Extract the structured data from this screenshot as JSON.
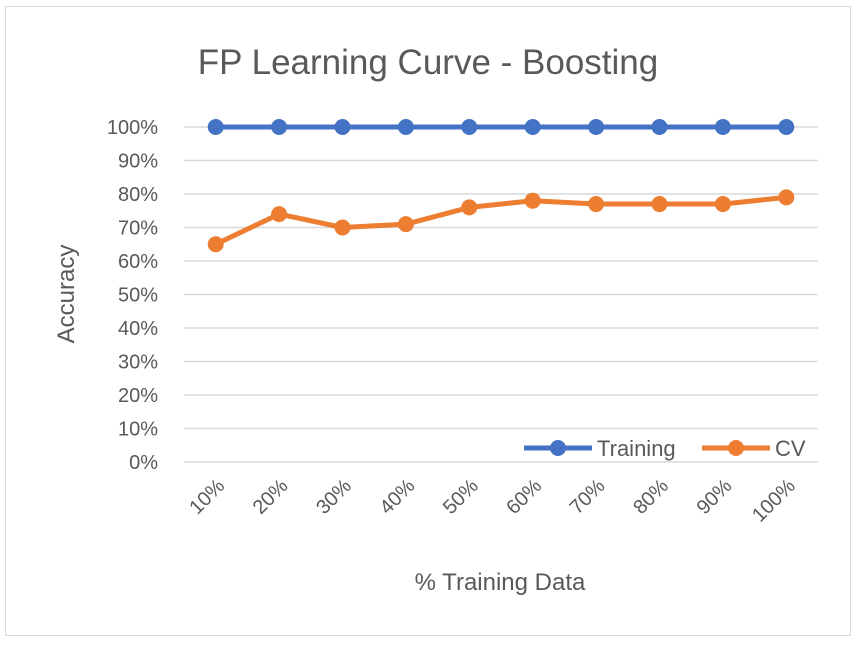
{
  "chart_data": {
    "type": "line",
    "title": "FP Learning Curve - Boosting",
    "xlabel": "% Training Data",
    "ylabel": "Accuracy",
    "categories": [
      "10%",
      "20%",
      "30%",
      "40%",
      "50%",
      "60%",
      "70%",
      "80%",
      "90%",
      "100%"
    ],
    "y_ticks": [
      "0%",
      "10%",
      "20%",
      "30%",
      "40%",
      "50%",
      "60%",
      "70%",
      "80%",
      "90%",
      "100%"
    ],
    "ylim": [
      0,
      1
    ],
    "grid": true,
    "legend_position": "bottom-right",
    "series": [
      {
        "name": "Training",
        "color": "#4472c4",
        "values": [
          1.0,
          1.0,
          1.0,
          1.0,
          1.0,
          1.0,
          1.0,
          1.0,
          1.0,
          1.0
        ]
      },
      {
        "name": "CV",
        "color": "#ed7d31",
        "values": [
          0.65,
          0.74,
          0.7,
          0.71,
          0.76,
          0.78,
          0.77,
          0.77,
          0.77,
          0.79
        ]
      }
    ]
  }
}
